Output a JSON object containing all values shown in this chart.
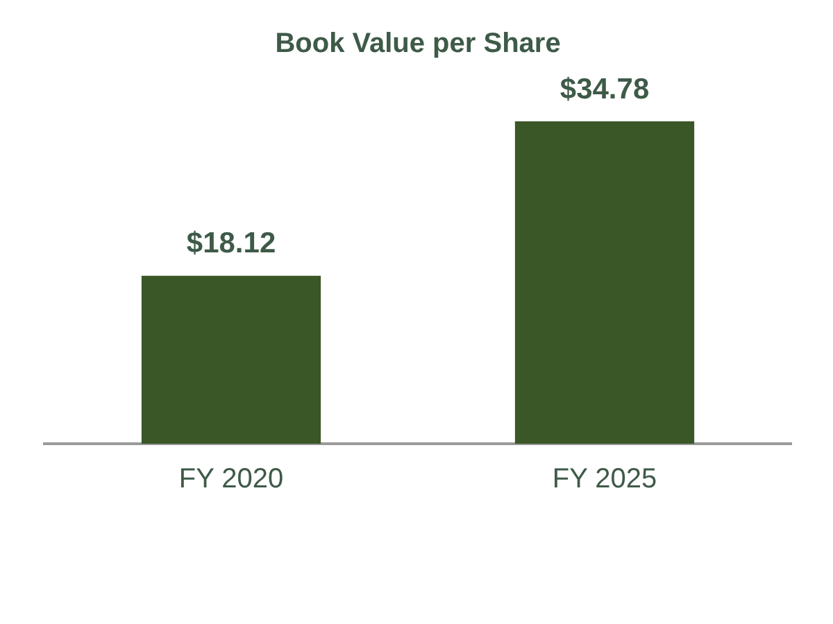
{
  "chart_data": {
    "type": "bar",
    "title": "Book Value per Share",
    "categories": [
      "FY 2020",
      "FY 2025"
    ],
    "values": [
      18.12,
      34.78
    ],
    "value_labels": [
      "$18.12",
      "$34.78"
    ],
    "color": "#3a5727",
    "grid": false,
    "legend": false
  }
}
